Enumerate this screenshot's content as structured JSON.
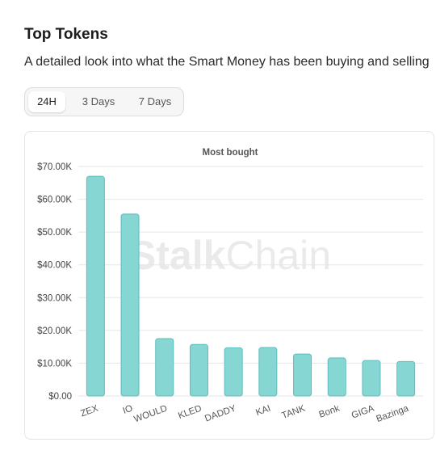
{
  "header": {
    "title": "Top Tokens",
    "subtitle": "A detailed look into what the Smart Money has been buying and selling"
  },
  "tabs": [
    {
      "label": "24H",
      "active": true
    },
    {
      "label": "3 Days",
      "active": false
    },
    {
      "label": "7 Days",
      "active": false
    }
  ],
  "watermark": {
    "strong": "Stalk",
    "light": "Chain"
  },
  "colors": {
    "bar_fill": "#86d6d4",
    "bar_stroke": "#5fbdbb",
    "grid": "#e6e6e6"
  },
  "chart_data": {
    "type": "bar",
    "title": "Most bought",
    "categories": [
      "ZEX",
      "IO",
      "WOULD",
      "KLED",
      "DADDY",
      "KAI",
      "TANK",
      "Bonk",
      "GIGA",
      "Bazinga"
    ],
    "values": [
      67000,
      55500,
      17500,
      15700,
      14700,
      14800,
      12800,
      11600,
      10800,
      10500
    ],
    "ylim": [
      0,
      70000
    ],
    "yticks": [
      "$0.00",
      "$10.00K",
      "$20.00K",
      "$30.00K",
      "$40.00K",
      "$50.00K",
      "$60.00K",
      "$70.00K"
    ],
    "grid": true,
    "legend": "none"
  }
}
